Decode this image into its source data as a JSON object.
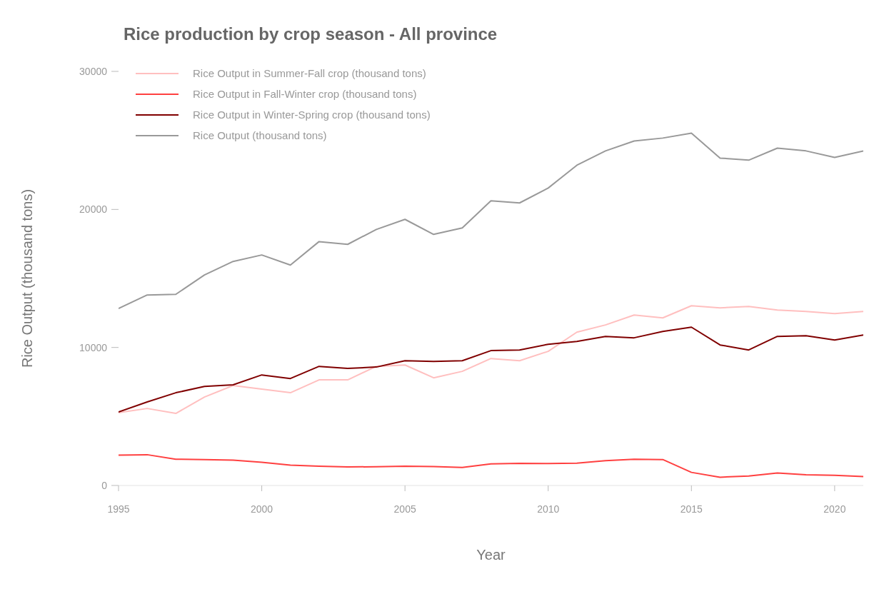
{
  "chart_data": {
    "type": "line",
    "title": "Rice production by crop season - All province",
    "xlabel": "Year",
    "ylabel": "Rice Output (thousand tons)",
    "x": [
      1995,
      1996,
      1997,
      1998,
      1999,
      2000,
      2001,
      2002,
      2003,
      2004,
      2005,
      2006,
      2007,
      2008,
      2009,
      2010,
      2011,
      2012,
      2013,
      2014,
      2015,
      2016,
      2017,
      2018,
      2019,
      2020,
      2021
    ],
    "series": [
      {
        "name": "Rice Output in Summer-Fall crop (thousand tons)",
        "color": "#ffbfbf",
        "values": [
          5270,
          5580,
          5220,
          6410,
          7240,
          6980,
          6720,
          7650,
          7650,
          8630,
          8730,
          7800,
          8270,
          9200,
          9040,
          9720,
          11110,
          11630,
          12350,
          12140,
          13020,
          12870,
          12970,
          12710,
          12610,
          12450,
          12610
        ]
      },
      {
        "name": "Rice Output in Fall-Winter crop (thousand tons)",
        "color": "#ff4040",
        "values": [
          2200,
          2230,
          1900,
          1880,
          1830,
          1680,
          1480,
          1400,
          1340,
          1360,
          1400,
          1370,
          1300,
          1560,
          1600,
          1590,
          1620,
          1800,
          1900,
          1880,
          950,
          600,
          680,
          900,
          770,
          740,
          650
        ]
      },
      {
        "name": "Rice Output in Winter-Spring crop (thousand tons)",
        "color": "#800000",
        "values": [
          5320,
          6050,
          6720,
          7180,
          7290,
          8010,
          7750,
          8630,
          8480,
          8580,
          9040,
          8990,
          9040,
          9770,
          9820,
          10230,
          10440,
          10800,
          10700,
          11160,
          11470,
          10180,
          9820,
          10800,
          10850,
          10540,
          10900
        ]
      },
      {
        "name": "Rice Output (thousand tons)",
        "color": "#999999",
        "values": [
          12820,
          13800,
          13850,
          15250,
          16230,
          16700,
          15970,
          17670,
          17470,
          18550,
          19280,
          18190,
          18660,
          20620,
          20470,
          21550,
          23200,
          24240,
          24960,
          25170,
          25530,
          23720,
          23570,
          24440,
          24240,
          23770,
          24240
        ]
      }
    ],
    "xlim": [
      1995,
      2021
    ],
    "xticks": [
      1995,
      2000,
      2005,
      2010,
      2015,
      2020
    ],
    "ylim": [
      0,
      30000
    ],
    "yticks": [
      0,
      10000,
      20000,
      30000
    ],
    "grid": false,
    "legend": "top left",
    "line_style": "solid",
    "marker": "none"
  }
}
